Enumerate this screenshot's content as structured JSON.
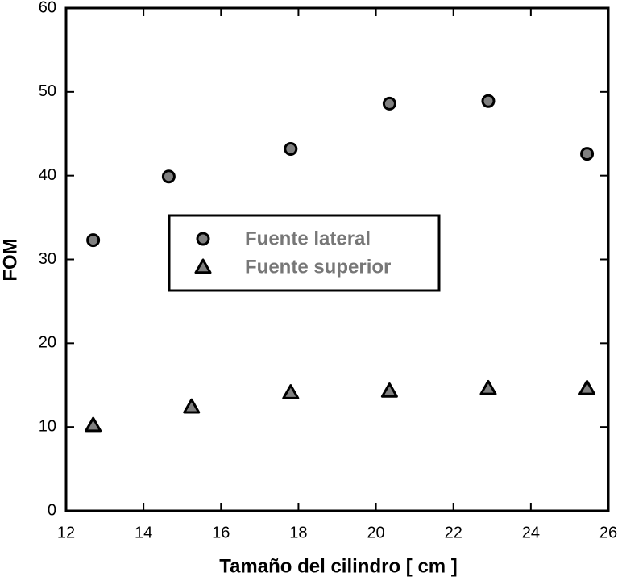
{
  "chart_data": {
    "type": "scatter",
    "x_label": "Tamaño del cilindro [ cm ]",
    "y_label": "FOM",
    "xlim": [
      12,
      26
    ],
    "xticks": [
      12,
      14,
      16,
      18,
      20,
      22,
      24,
      26
    ],
    "ylim": [
      0,
      60
    ],
    "yticks": [
      0,
      10,
      20,
      30,
      40,
      50,
      60
    ],
    "series": [
      {
        "name": "Fuente lateral",
        "marker": "circle",
        "color": "#808080",
        "x": [
          12.7,
          14.65,
          17.8,
          20.35,
          22.9,
          25.45
        ],
        "values": [
          32.3,
          39.9,
          43.2,
          48.6,
          48.9,
          42.6
        ]
      },
      {
        "name": "Fuente superior",
        "marker": "triangle",
        "color": "#808080",
        "x": [
          12.7,
          15.24,
          17.8,
          20.35,
          22.9,
          25.45
        ],
        "values": [
          10.2,
          12.4,
          14.1,
          14.3,
          14.6,
          14.6
        ]
      }
    ]
  }
}
